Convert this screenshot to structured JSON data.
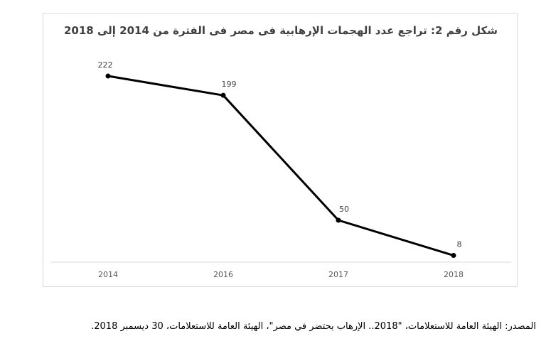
{
  "chart_data": {
    "type": "line",
    "title": "شكل رقم 2: تراجع عدد الهجمات الإرهابية فى مصر فى الفترة من 2014 إلى 2018",
    "categories": [
      "2014",
      "2016",
      "2017",
      "2018"
    ],
    "series": [
      {
        "values": [
          222,
          199,
          50,
          8
        ]
      }
    ],
    "data_labels": [
      "222",
      "199",
      "50",
      "8"
    ],
    "ylim": [
      0,
      250
    ],
    "grid": false,
    "legend": "none",
    "line_color": "#000000",
    "axis_color": "#d9d9d9"
  },
  "source": "المصدر: الهيئة العامة للاستعلامات، \"2018.. الإرهاب يحتضر في مصر\"، الهيئة العامة للاستعلامات، 30 ديسمبر 2018."
}
